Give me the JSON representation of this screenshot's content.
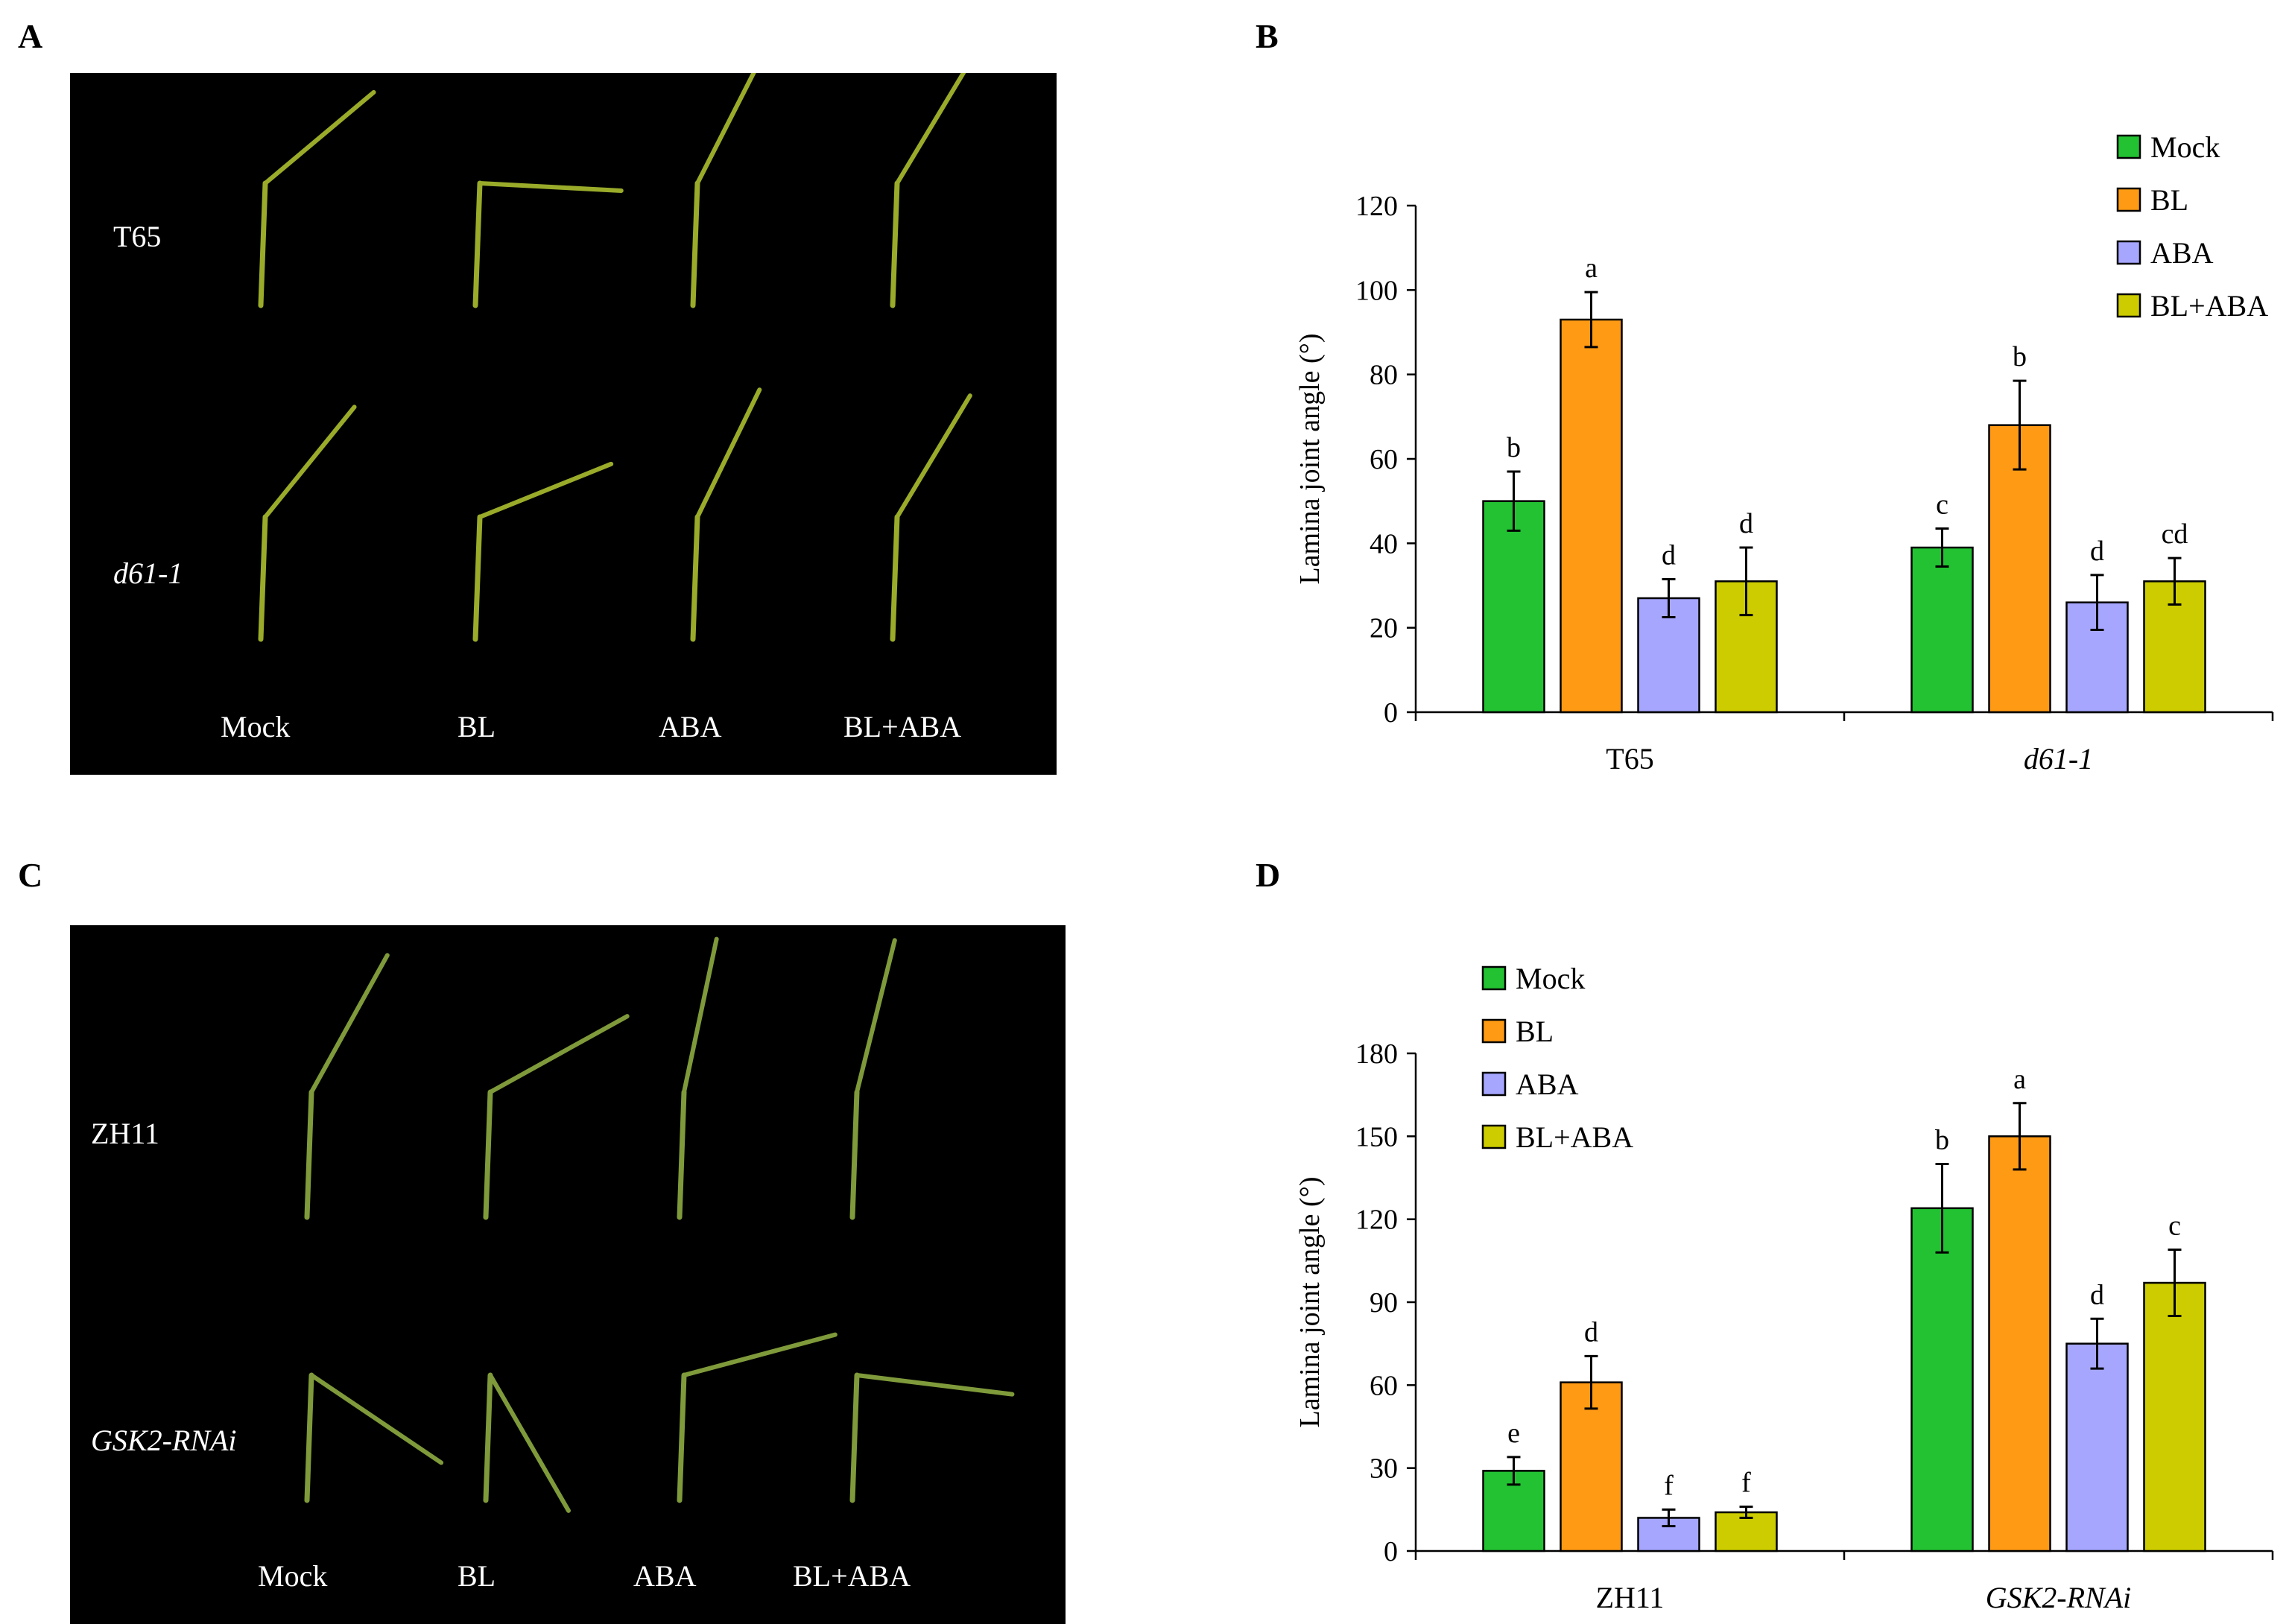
{
  "figure": {
    "panels": {
      "A": {
        "label": "A",
        "rows": [
          {
            "name": "T65",
            "italic": false
          },
          {
            "name": "d61-1",
            "italic": true
          }
        ],
        "columns": [
          "Mock",
          "BL",
          "ABA",
          "BL+ABA"
        ],
        "leaf_angles_deg": [
          [
            50,
            93,
            27,
            31
          ],
          [
            39,
            68,
            26,
            31
          ]
        ],
        "colors": {
          "background": "#000000",
          "leaf": "#9aab2a"
        }
      },
      "C": {
        "label": "C",
        "rows": [
          {
            "name": "ZH11",
            "italic": false
          },
          {
            "name": "GSK2-RNAi",
            "italic": true
          }
        ],
        "columns": [
          "Mock",
          "BL",
          "ABA",
          "BL+ABA"
        ],
        "leaf_angles_deg": [
          [
            29,
            61,
            12,
            14
          ],
          [
            124,
            150,
            75,
            97
          ]
        ],
        "colors": {
          "background": "#000000",
          "leaf": "#7f9a3a"
        }
      }
    },
    "colors": {
      "Mock": "#22c232",
      "BL": "#ff9a14",
      "ABA": "#a6a6ff",
      "BL+ABA": "#cccc00"
    }
  },
  "chart_data": [
    {
      "panel": "B",
      "type": "bar",
      "title": "",
      "xlabel": "",
      "ylabel": "Lamina joint angle (°)",
      "categories": [
        "T65",
        "d61-1"
      ],
      "categories_italic": [
        false,
        true
      ],
      "ylim": [
        0,
        120
      ],
      "yticks": [
        0,
        20,
        40,
        60,
        80,
        100,
        120
      ],
      "legend": "top-right",
      "series": [
        {
          "name": "Mock",
          "color": "#22c232",
          "values": [
            50,
            39
          ],
          "errors": [
            7,
            4.5
          ],
          "letters": [
            "b",
            "c"
          ]
        },
        {
          "name": "BL",
          "color": "#ff9a14",
          "values": [
            93,
            68
          ],
          "errors": [
            6.5,
            10.5
          ],
          "letters": [
            "a",
            "b"
          ]
        },
        {
          "name": "ABA",
          "color": "#a6a6ff",
          "values": [
            27,
            26
          ],
          "errors": [
            4.5,
            6.5
          ],
          "letters": [
            "d",
            "d"
          ]
        },
        {
          "name": "BL+ABA",
          "color": "#cccc00",
          "values": [
            31,
            31
          ],
          "errors": [
            8,
            5.5
          ],
          "letters": [
            "d",
            "cd"
          ]
        }
      ]
    },
    {
      "panel": "D",
      "type": "bar",
      "title": "",
      "xlabel": "",
      "ylabel": "Lamina joint angle (°)",
      "categories": [
        "ZH11",
        "GSK2-RNAi"
      ],
      "categories_italic": [
        false,
        true
      ],
      "ylim": [
        0,
        180
      ],
      "yticks": [
        0,
        30,
        60,
        90,
        120,
        150,
        180
      ],
      "legend": "top-left",
      "series": [
        {
          "name": "Mock",
          "color": "#22c232",
          "values": [
            29,
            124
          ],
          "errors": [
            5,
            16
          ],
          "letters": [
            "e",
            "b"
          ]
        },
        {
          "name": "BL",
          "color": "#ff9a14",
          "values": [
            61,
            150
          ],
          "errors": [
            9.5,
            12
          ],
          "letters": [
            "d",
            "a"
          ]
        },
        {
          "name": "ABA",
          "color": "#a6a6ff",
          "values": [
            12,
            75
          ],
          "errors": [
            3,
            9
          ],
          "letters": [
            "f",
            "d"
          ]
        },
        {
          "name": "BL+ABA",
          "color": "#cccc00",
          "values": [
            14,
            97
          ],
          "errors": [
            2,
            12
          ],
          "letters": [
            "f",
            "c"
          ]
        }
      ]
    }
  ]
}
